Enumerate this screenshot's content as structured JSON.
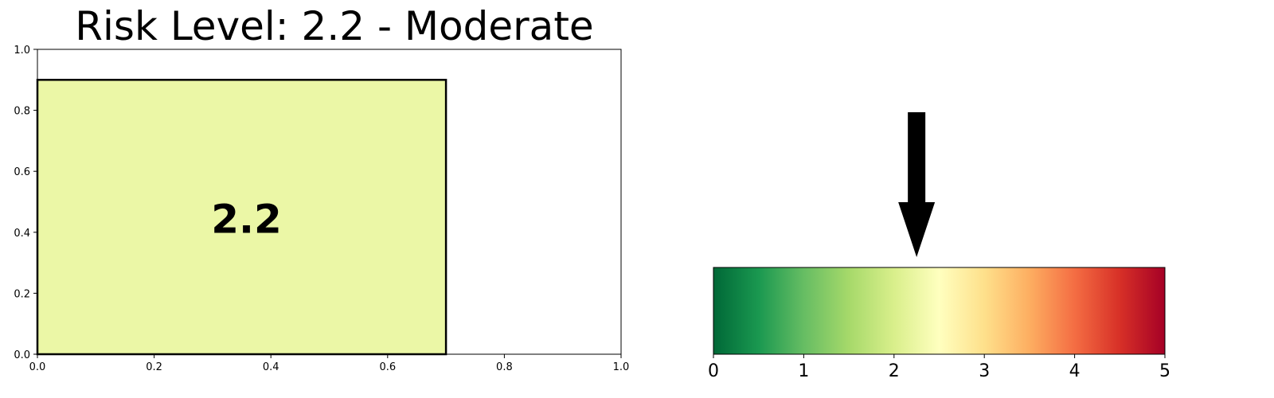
{
  "title": "Risk Level: 2.2 - Moderate",
  "chart_data": [
    {
      "type": "bar",
      "title": "Risk Level: 2.2 - Moderate",
      "bar": {
        "x0": 0.0,
        "x1": 0.7,
        "y0": 0.0,
        "y1": 0.9,
        "color": "#ebf7a6",
        "edgecolor": "#000000"
      },
      "value_label": "2.2",
      "xlim": [
        0,
        1
      ],
      "ylim": [
        0,
        1
      ],
      "xticks": [
        "0.0",
        "0.2",
        "0.4",
        "0.6",
        "0.8",
        "1.0"
      ],
      "yticks": [
        "0.0",
        "0.2",
        "0.4",
        "0.6",
        "0.8",
        "1.0"
      ],
      "grid": false
    },
    {
      "type": "heatmap",
      "colormap": "RdYlGn_r",
      "colors": [
        "#006837",
        "#1a9850",
        "#66bd63",
        "#a6d96a",
        "#d9ef8b",
        "#ffffbf",
        "#fee08b",
        "#fdae61",
        "#f46d43",
        "#d73027",
        "#a50026"
      ],
      "xlim": [
        0,
        5
      ],
      "xticks": [
        "0",
        "1",
        "2",
        "3",
        "4",
        "5"
      ],
      "indicator_value": 2.25,
      "indicator": "arrow"
    }
  ]
}
